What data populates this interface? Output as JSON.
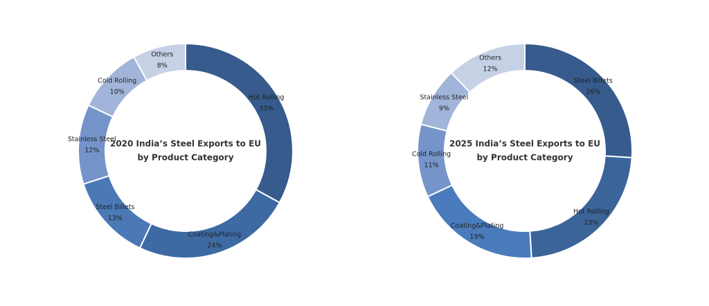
{
  "chart_data": [
    {
      "type": "donut",
      "title": "2020 India’s Steel Exports to EU",
      "subtitle": "by Product Category",
      "categories": [
        "Hot Rolling",
        "Coating&Plating",
        "Steel Billets",
        "Stainless Steel",
        "Cold Rolling",
        "Others"
      ],
      "values": [
        33,
        24,
        13,
        12,
        10,
        8
      ],
      "value_labels": [
        "33%",
        "24%",
        "13%",
        "12%",
        "10%",
        "8%"
      ],
      "colors": [
        "#365b8c",
        "#3e6aa3",
        "#4a79b6",
        "#7594c9",
        "#a1b5da",
        "#c6d1e5"
      ]
    },
    {
      "type": "donut",
      "title": "2025 India’s Steel Exports to EU",
      "subtitle": "by Product Category",
      "categories": [
        "Steel Billets",
        "Hot Rolling",
        "Coating&Plating",
        "Cold Rolling",
        "Stainless Steel",
        "Others"
      ],
      "values": [
        26,
        23,
        19,
        11,
        9,
        12
      ],
      "value_labels": [
        "26%",
        "23%",
        "19%",
        "11%",
        "9%",
        "12%"
      ],
      "colors": [
        "#365b8c",
        "#3b6499",
        "#4a7bbd",
        "#7594c9",
        "#a1b5da",
        "#c6d1e5"
      ]
    }
  ]
}
